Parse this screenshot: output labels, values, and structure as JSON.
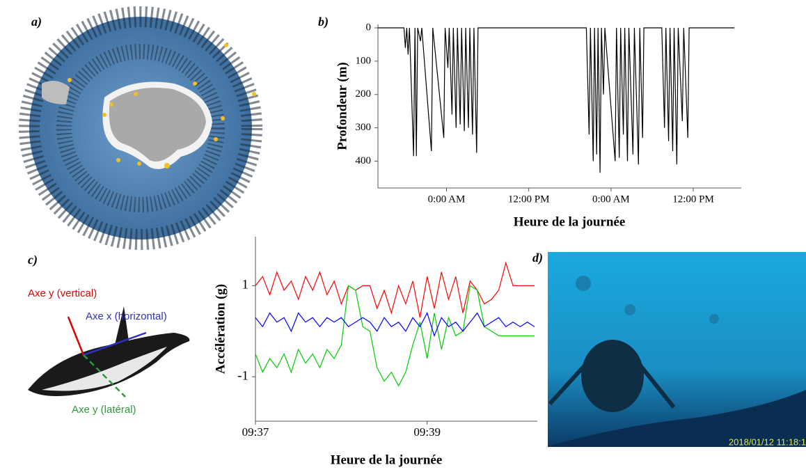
{
  "panels": {
    "a": "a)",
    "b": "b)",
    "c": "c)",
    "d": "d)"
  },
  "diagram": {
    "vertical": "Axe y (vertical)",
    "horizontal": "Axe x (horizontal)",
    "lateral": "Axe y (latéral)"
  },
  "photo": {
    "timestamp": "2018/01/12  11:18:1"
  },
  "chart_data": [
    {
      "type": "line",
      "ylabel": "Profondeur (m)",
      "xlabel": "Heure de la journée",
      "xlim": [
        -10,
        43
      ],
      "ylim": [
        470,
        0
      ],
      "xticks": [
        {
          "value": 0,
          "label": "0:00 AM"
        },
        {
          "value": 12,
          "label": "12:00 PM"
        },
        {
          "value": 24,
          "label": "0:00 AM"
        },
        {
          "value": 36,
          "label": "12:00 PM"
        }
      ],
      "yticks": [
        0,
        100,
        200,
        300,
        400
      ],
      "x": [
        -10,
        -6.2,
        -6,
        -5.8,
        -5.6,
        -5.4,
        -4.8,
        -4.6,
        -4.4,
        -4.2,
        -3.8,
        -3.6,
        -2.2,
        -2.0,
        -0.4,
        -0.2,
        0.2,
        0.4,
        0.8,
        1.0,
        1.4,
        1.6,
        2.0,
        2.2,
        2.6,
        2.8,
        3.2,
        3.4,
        3.8,
        4.0,
        4.4,
        4.6,
        20.4,
        20.8,
        21.0,
        21.4,
        21.6,
        21.9,
        22.1,
        22.4,
        22.6,
        22.9,
        23.1,
        24.6,
        24.8,
        25.2,
        25.4,
        25.8,
        26.0,
        26.4,
        26.6,
        27.2,
        27.4,
        28.0,
        28.2,
        28.6,
        28.8,
        31.4,
        31.8,
        32.0,
        32.4,
        32.6,
        33.0,
        33.2,
        33.6,
        33.8,
        34.4,
        34.6,
        35.2,
        35.4,
        42
      ],
      "series": [
        {
          "color": "#000000",
          "values": [
            0,
            0,
            60,
            0,
            80,
            0,
            385,
            0,
            385,
            0,
            40,
            0,
            370,
            0,
            330,
            0,
            120,
            0,
            260,
            0,
            300,
            0,
            290,
            0,
            310,
            0,
            300,
            0,
            320,
            0,
            375,
            0,
            0,
            320,
            0,
            400,
            0,
            380,
            0,
            435,
            0,
            200,
            0,
            400,
            0,
            390,
            0,
            320,
            0,
            400,
            0,
            380,
            0,
            410,
            0,
            330,
            0,
            0,
            300,
            0,
            340,
            0,
            370,
            0,
            410,
            0,
            280,
            0,
            330,
            0,
            0
          ]
        }
      ]
    },
    {
      "type": "line",
      "ylabel": "Accélération (g)",
      "xlabel": "Heure de la journée",
      "xlim": [
        0,
        197
      ],
      "ylim": [
        -1.9,
        2.0
      ],
      "xticks": [
        {
          "value": 0,
          "label": "09:37"
        },
        {
          "value": 120,
          "label": "09:39"
        }
      ],
      "yticks": [
        1,
        -1
      ],
      "x": [
        0,
        5,
        10,
        15,
        20,
        25,
        30,
        35,
        40,
        45,
        50,
        55,
        60,
        65,
        70,
        75,
        80,
        85,
        90,
        95,
        100,
        105,
        110,
        115,
        120,
        125,
        130,
        135,
        140,
        145,
        150,
        155,
        160,
        165,
        170,
        175,
        180,
        185,
        190,
        195
      ],
      "series": [
        {
          "color": "#ff0000",
          "values": [
            1.0,
            1.2,
            0.8,
            1.3,
            0.9,
            1.1,
            0.7,
            1.2,
            0.9,
            1.3,
            0.8,
            1.1,
            0.6,
            1.0,
            0.9,
            1.0,
            1.0,
            0.5,
            0.9,
            0.4,
            1.0,
            0.6,
            1.1,
            0.3,
            1.2,
            0.5,
            1.3,
            0.7,
            1.2,
            0.4,
            1.1,
            0.9,
            0.6,
            0.7,
            0.9,
            1.5,
            1.0,
            1.0,
            1.0,
            1.0
          ]
        },
        {
          "color": "#00cc00",
          "values": [
            -0.5,
            -0.9,
            -0.6,
            -0.8,
            -0.5,
            -0.9,
            -0.4,
            -0.7,
            -0.5,
            -0.8,
            -0.4,
            -0.6,
            -0.3,
            1.0,
            0.9,
            0.1,
            0.0,
            -0.8,
            -1.1,
            -0.9,
            -1.2,
            -0.9,
            -0.3,
            0.2,
            -0.6,
            0.4,
            -0.4,
            0.3,
            -0.1,
            0.0,
            1.0,
            0.9,
            0.1,
            0.0,
            -0.1,
            -0.1,
            -0.1,
            -0.1,
            -0.1,
            -0.1
          ]
        },
        {
          "color": "#0000ff",
          "values": [
            0.3,
            0.1,
            0.4,
            0.2,
            0.3,
            0.0,
            0.4,
            0.2,
            0.3,
            0.1,
            0.3,
            0.2,
            0.3,
            0.1,
            0.2,
            0.3,
            0.2,
            0.0,
            0.3,
            0.1,
            0.2,
            0.0,
            0.3,
            0.1,
            0.4,
            -0.1,
            0.3,
            0.1,
            0.2,
            0.0,
            0.2,
            0.4,
            0.1,
            0.2,
            0.3,
            0.1,
            0.2,
            0.1,
            0.2,
            0.1
          ]
        }
      ]
    }
  ]
}
